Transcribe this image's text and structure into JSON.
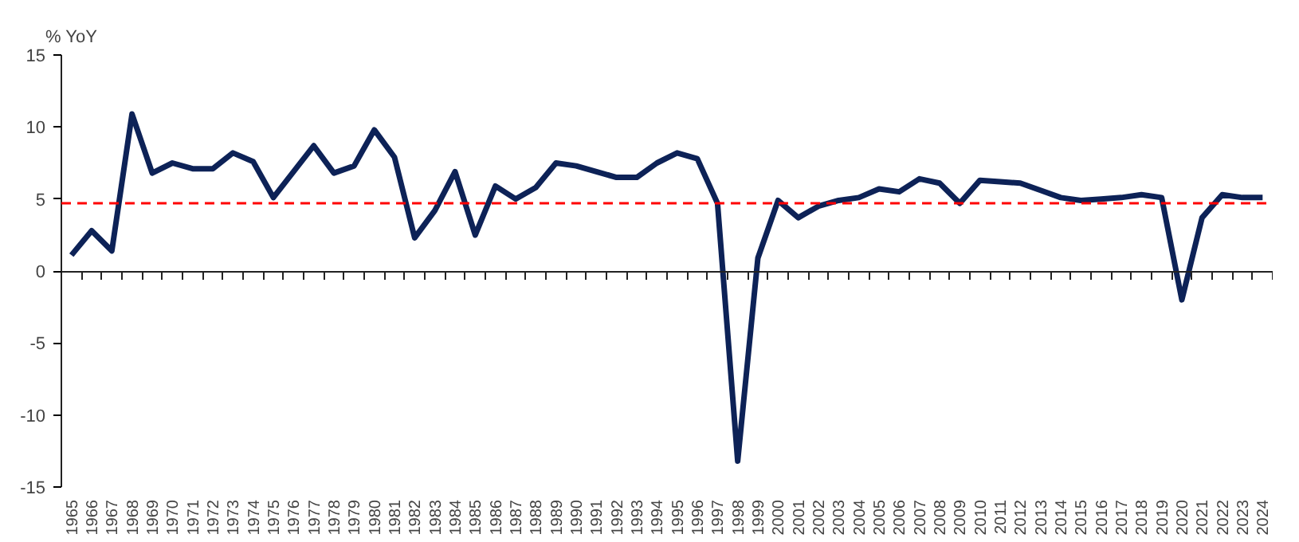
{
  "chart_data": {
    "type": "line",
    "ylabel": "% YoY",
    "categories": [
      "1965",
      "1966",
      "1967",
      "1968",
      "1969",
      "1970",
      "1971",
      "1972",
      "1973",
      "1974",
      "1975",
      "1976",
      "1977",
      "1978",
      "1979",
      "1980",
      "1981",
      "1982",
      "1983",
      "1984",
      "1985",
      "1986",
      "1987",
      "1988",
      "1989",
      "1990",
      "1991",
      "1992",
      "1993",
      "1994",
      "1995",
      "1996",
      "1997",
      "1998",
      "1999",
      "2000",
      "2001",
      "2002",
      "2003",
      "2004",
      "2005",
      "2006",
      "2007",
      "2008",
      "2009",
      "2010",
      "2011",
      "2012",
      "2013",
      "2014",
      "2015",
      "2016",
      "2017",
      "2018",
      "2019",
      "2020",
      "2021",
      "2022",
      "2023",
      "2024"
    ],
    "series": [
      {
        "color": "#0d2257",
        "values": [
          1.1,
          2.8,
          1.4,
          10.9,
          6.8,
          7.5,
          7.1,
          7.1,
          8.2,
          7.6,
          5.1,
          6.9,
          8.7,
          6.8,
          7.3,
          9.8,
          7.9,
          2.3,
          4.2,
          6.9,
          2.5,
          5.9,
          5.0,
          5.8,
          7.5,
          7.3,
          6.9,
          6.5,
          6.5,
          7.5,
          8.2,
          7.8,
          4.7,
          -13.2,
          0.9,
          4.9,
          3.7,
          4.5,
          4.9,
          5.1,
          5.7,
          5.5,
          6.4,
          6.1,
          4.7,
          6.3,
          6.2,
          6.1,
          5.6,
          5.1,
          4.9,
          5.0,
          5.1,
          5.3,
          5.1,
          -2.0,
          3.7,
          5.3,
          5.1,
          5.1
        ]
      }
    ],
    "ylim": [
      -15,
      15
    ],
    "yticks": [
      -15,
      -10,
      -5,
      0,
      5,
      10,
      15
    ],
    "ref_lines": [
      {
        "axis": "y",
        "value": 4.7,
        "color": "#ff0000",
        "line_style": "dashed"
      }
    ],
    "marker": "none",
    "line_style": "solid"
  }
}
